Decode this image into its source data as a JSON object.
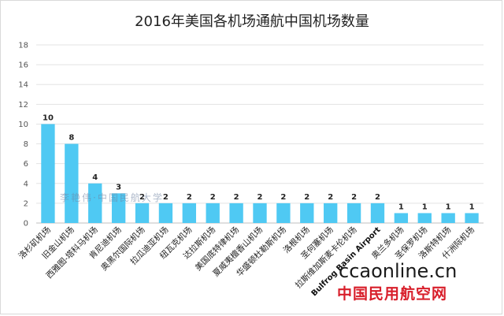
{
  "chart_data": {
    "type": "bar",
    "title": "2016年美国各机场通航中国机场数量",
    "xlabel": "",
    "ylabel": "",
    "ylim": [
      0,
      18
    ],
    "yticks": [
      0,
      2,
      4,
      6,
      8,
      10,
      12,
      14,
      16,
      18
    ],
    "grid": true,
    "bar_color": "#4fc9f3",
    "categories": [
      "洛杉矶机场",
      "旧金山机场",
      "西雅图-塔科马机场",
      "肯尼迪机场",
      "奥黑尔国际机场",
      "拉瓜迪亚机场",
      "纽瓦克机场",
      "达拉斯机场",
      "美国底特律机场",
      "夏威夷檀香山机场",
      "华盛顿杜勒斯机场",
      "洛根机场",
      "圣何塞机场",
      "拉斯维加斯麦卡伦机场",
      "Bulfrog Basin Airport",
      "奥兰多机场",
      "圣保罗机场",
      "洛斯特机场",
      "什洲际机场"
    ],
    "values": [
      10,
      8,
      4,
      3,
      2,
      2,
      2,
      2,
      2,
      2,
      2,
      2,
      2,
      2,
      2,
      1,
      1,
      1,
      1
    ]
  },
  "watermark": "李艳伟·中国民航大学",
  "site": {
    "url": "ccaonline.cn",
    "name": "中国民用航空网"
  }
}
